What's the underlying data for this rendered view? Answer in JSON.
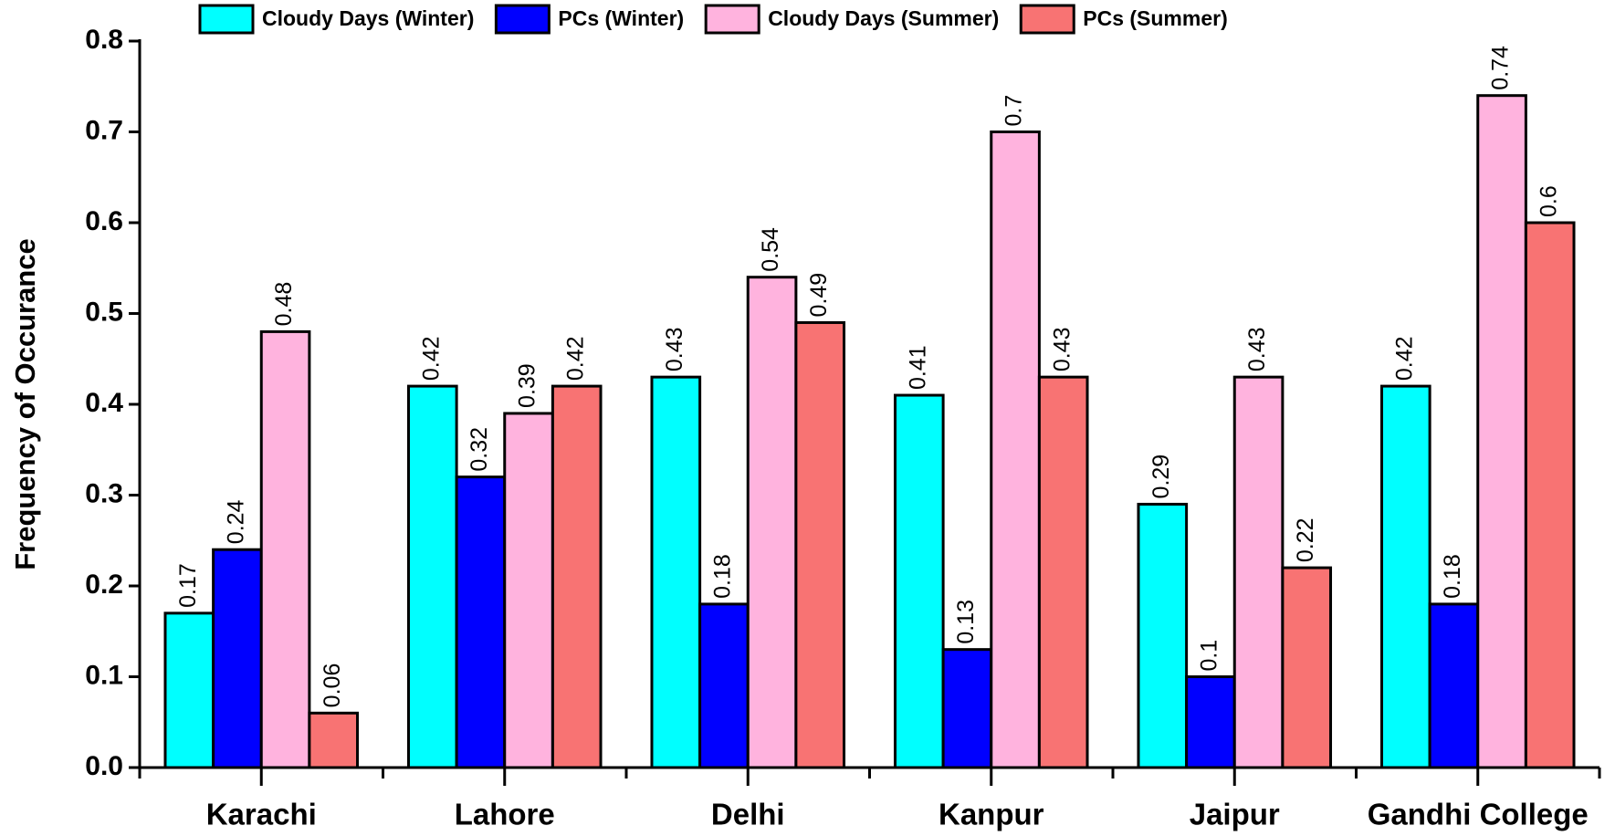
{
  "chart_data": {
    "type": "bar",
    "y_label": "Frequency of Occurance",
    "categories": [
      "Karachi",
      "Lahore",
      "Delhi",
      "Kanpur",
      "Jaipur",
      "Gandhi College"
    ],
    "series": [
      {
        "name": "Cloudy Days (Winter)",
        "color": "#00ffff",
        "values": [
          0.17,
          0.42,
          0.43,
          0.41,
          0.29,
          0.42
        ]
      },
      {
        "name": "PCs (Winter)",
        "color": "#0000ff",
        "values": [
          0.24,
          0.32,
          0.18,
          0.13,
          0.1,
          0.18
        ]
      },
      {
        "name": "Cloudy Days (Summer)",
        "color": "#ffb3de",
        "values": [
          0.48,
          0.39,
          0.54,
          0.7,
          0.43,
          0.74
        ]
      },
      {
        "name": "PCs (Summer)",
        "color": "#f87373",
        "values": [
          0.06,
          0.42,
          0.49,
          0.43,
          0.22,
          0.6
        ]
      }
    ],
    "ylim": [
      0,
      0.8
    ],
    "yticks": [
      {
        "value": 0,
        "label": "0.0"
      },
      0.1,
      0.2,
      0.3,
      0.4,
      0.5,
      0.6,
      0.7,
      0.8
    ],
    "grid": false,
    "legend": "top"
  }
}
